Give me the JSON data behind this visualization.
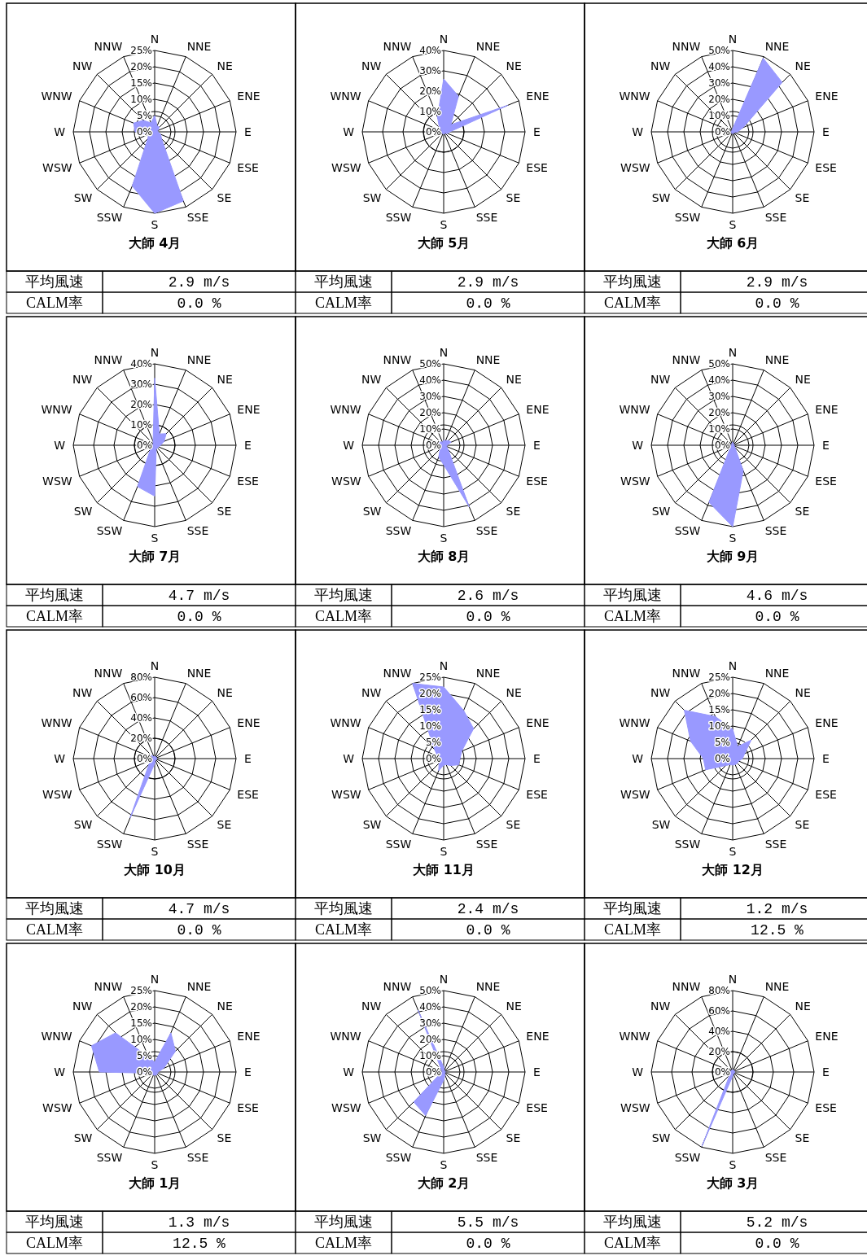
{
  "chart_data": [
    {
      "type": "radar",
      "title": "大師 4月",
      "categories": [
        "N",
        "NNE",
        "NE",
        "ENE",
        "E",
        "ESE",
        "SE",
        "SSE",
        "S",
        "SSW",
        "SW",
        "WSW",
        "W",
        "WNW",
        "NW",
        "NNW"
      ],
      "series": [
        {
          "color": "#9999ff",
          "values": [
            5,
            2,
            2,
            1,
            1,
            2,
            3,
            23,
            25,
            18,
            3,
            2,
            6,
            7,
            5,
            3
          ]
        }
      ],
      "ylim": [
        0,
        25
      ],
      "yticks": [
        {
          "value": 0,
          "label": "0%"
        },
        {
          "value": 5,
          "label": "5%"
        },
        {
          "value": 10,
          "label": "10%"
        },
        {
          "value": 15,
          "label": "15%"
        },
        {
          "value": 20,
          "label": "20%"
        },
        {
          "value": 25,
          "label": "25%"
        }
      ],
      "grid": true,
      "annotations": [
        "平均風速",
        "2.9 m/s",
        "CALM率",
        "0.0 %"
      ]
    },
    {
      "type": "radar",
      "title": "大師 5月",
      "categories": [
        "N",
        "NNE",
        "NE",
        "ENE",
        "E",
        "ESE",
        "SE",
        "SSE",
        "S",
        "SSW",
        "SW",
        "WSW",
        "W",
        "WNW",
        "NW",
        "NNW"
      ],
      "series": [
        {
          "color": "#9999ff",
          "values": [
            26,
            19,
            5,
            34,
            3,
            2,
            1,
            1,
            1,
            1,
            1,
            1,
            1,
            1,
            3,
            8
          ]
        }
      ],
      "ylim": [
        0,
        40
      ],
      "yticks": [
        {
          "value": 0,
          "label": "0%"
        },
        {
          "value": 10,
          "label": "10%"
        },
        {
          "value": 20,
          "label": "20%"
        },
        {
          "value": 30,
          "label": "30%"
        },
        {
          "value": 40,
          "label": "40%"
        }
      ],
      "grid": true,
      "annotations": [
        "平均風速",
        "2.9 m/s",
        "CALM率",
        "0.0 %"
      ]
    },
    {
      "type": "radar",
      "title": "大師 6月",
      "categories": [
        "N",
        "NNE",
        "NE",
        "ENE",
        "E",
        "ESE",
        "SE",
        "SSE",
        "S",
        "SSW",
        "SW",
        "WSW",
        "W",
        "WNW",
        "NW",
        "NNW"
      ],
      "series": [
        {
          "color": "#9999ff",
          "values": [
            2,
            49,
            43,
            7,
            3,
            1,
            1,
            1,
            1,
            1,
            1,
            1,
            1,
            1,
            1,
            1
          ]
        }
      ],
      "ylim": [
        0,
        50
      ],
      "yticks": [
        {
          "value": 0,
          "label": "0%"
        },
        {
          "value": 10,
          "label": "10%"
        },
        {
          "value": 20,
          "label": "20%"
        },
        {
          "value": 30,
          "label": "30%"
        },
        {
          "value": 40,
          "label": "40%"
        },
        {
          "value": 50,
          "label": "50%"
        }
      ],
      "grid": true,
      "annotations": [
        "平均風速",
        "2.9 m/s",
        "CALM率",
        "0.0 %"
      ]
    },
    {
      "type": "radar",
      "title": "大師 7月",
      "categories": [
        "N",
        "NNE",
        "NE",
        "ENE",
        "E",
        "ESE",
        "SE",
        "SSE",
        "S",
        "SSW",
        "SW",
        "WSW",
        "W",
        "WNW",
        "NW",
        "NNW"
      ],
      "series": [
        {
          "color": "#9999ff",
          "values": [
            33,
            6,
            8,
            5,
            3,
            2,
            2,
            2,
            25,
            22,
            3,
            1,
            1,
            1,
            1,
            2
          ]
        }
      ],
      "ylim": [
        0,
        40
      ],
      "yticks": [
        {
          "value": 0,
          "label": "0%"
        },
        {
          "value": 10,
          "label": "10%"
        },
        {
          "value": 20,
          "label": "20%"
        },
        {
          "value": 30,
          "label": "30%"
        },
        {
          "value": 40,
          "label": "40%"
        }
      ],
      "grid": true,
      "annotations": [
        "平均風速",
        "4.7 m/s",
        "CALM率",
        "0.0 %"
      ]
    },
    {
      "type": "radar",
      "title": "大師 8月",
      "categories": [
        "N",
        "NNE",
        "NE",
        "ENE",
        "E",
        "ESE",
        "SE",
        "SSE",
        "S",
        "SSW",
        "SW",
        "WSW",
        "W",
        "WNW",
        "NW",
        "NNW"
      ],
      "series": [
        {
          "color": "#9999ff",
          "values": [
            3,
            3,
            4,
            5,
            2,
            2,
            4,
            41,
            12,
            8,
            3,
            2,
            2,
            4,
            3,
            2
          ]
        }
      ],
      "ylim": [
        0,
        50
      ],
      "yticks": [
        {
          "value": 0,
          "label": "0%"
        },
        {
          "value": 10,
          "label": "10%"
        },
        {
          "value": 20,
          "label": "20%"
        },
        {
          "value": 30,
          "label": "30%"
        },
        {
          "value": 40,
          "label": "40%"
        },
        {
          "value": 50,
          "label": "50%"
        }
      ],
      "grid": true,
      "annotations": [
        "平均風速",
        "2.6 m/s",
        "CALM率",
        "0.0 %"
      ]
    },
    {
      "type": "radar",
      "title": "大師 9月",
      "categories": [
        "N",
        "NNE",
        "NE",
        "ENE",
        "E",
        "ESE",
        "SE",
        "SSE",
        "S",
        "SSW",
        "SW",
        "WSW",
        "W",
        "WNW",
        "NW",
        "NNW"
      ],
      "series": [
        {
          "color": "#9999ff",
          "values": [
            2,
            1,
            1,
            1,
            1,
            1,
            2,
            17,
            50,
            38,
            2,
            1,
            1,
            1,
            1,
            1
          ]
        }
      ],
      "ylim": [
        0,
        50
      ],
      "yticks": [
        {
          "value": 0,
          "label": "0%"
        },
        {
          "value": 10,
          "label": "10%"
        },
        {
          "value": 20,
          "label": "20%"
        },
        {
          "value": 30,
          "label": "30%"
        },
        {
          "value": 40,
          "label": "40%"
        },
        {
          "value": 50,
          "label": "50%"
        }
      ],
      "grid": true,
      "annotations": [
        "平均風速",
        "4.6 m/s",
        "CALM率",
        "0.0 %"
      ]
    },
    {
      "type": "radar",
      "title": "大師 10月",
      "categories": [
        "N",
        "NNE",
        "NE",
        "ENE",
        "E",
        "ESE",
        "SE",
        "SSE",
        "S",
        "SSW",
        "SW",
        "WSW",
        "W",
        "WNW",
        "NW",
        "NNW"
      ],
      "series": [
        {
          "color": "#9999ff",
          "values": [
            2,
            2,
            2,
            2,
            2,
            2,
            2,
            2,
            5,
            63,
            8,
            2,
            2,
            2,
            5,
            2
          ]
        }
      ],
      "ylim": [
        0,
        80
      ],
      "yticks": [
        {
          "value": 0,
          "label": "0%"
        },
        {
          "value": 20,
          "label": "20%"
        },
        {
          "value": 40,
          "label": "40%"
        },
        {
          "value": 60,
          "label": "60%"
        },
        {
          "value": 80,
          "label": "80%"
        }
      ],
      "grid": true,
      "annotations": [
        "平均風速",
        "4.7 m/s",
        "CALM率",
        "0.0 %"
      ]
    },
    {
      "type": "radar",
      "title": "大師 11月",
      "categories": [
        "N",
        "NNE",
        "NE",
        "ENE",
        "E",
        "ESE",
        "SE",
        "SSE",
        "S",
        "SSW",
        "SW",
        "WSW",
        "W",
        "WNW",
        "NW",
        "NNW"
      ],
      "series": [
        {
          "color": "#9999ff",
          "values": [
            22,
            16,
            13,
            6,
            5,
            5,
            3,
            2,
            2,
            4,
            2,
            1,
            1,
            2,
            4,
            25
          ]
        }
      ],
      "ylim": [
        0,
        25
      ],
      "yticks": [
        {
          "value": 0,
          "label": "0%"
        },
        {
          "value": 5,
          "label": "5%"
        },
        {
          "value": 10,
          "label": "10%"
        },
        {
          "value": 15,
          "label": "15%"
        },
        {
          "value": 20,
          "label": "20%"
        },
        {
          "value": 25,
          "label": "25%"
        }
      ],
      "grid": true,
      "annotations": [
        "平均風速",
        "2.4 m/s",
        "CALM率",
        "0.0 %"
      ]
    },
    {
      "type": "radar",
      "title": "大師 12月",
      "categories": [
        "N",
        "NNE",
        "NE",
        "ENE",
        "E",
        "ESE",
        "SE",
        "SSE",
        "S",
        "SSW",
        "SW",
        "WSW",
        "W",
        "WNW",
        "NW",
        "NNW"
      ],
      "series": [
        {
          "color": "#9999ff",
          "values": [
            9,
            4,
            8,
            4,
            3,
            2,
            2,
            2,
            2,
            2,
            3,
            9,
            9,
            14,
            21,
            14
          ]
        }
      ],
      "ylim": [
        0,
        25
      ],
      "yticks": [
        {
          "value": 0,
          "label": "0%"
        },
        {
          "value": 5,
          "label": "5%"
        },
        {
          "value": 10,
          "label": "10%"
        },
        {
          "value": 15,
          "label": "15%"
        },
        {
          "value": 20,
          "label": "20%"
        },
        {
          "value": 25,
          "label": "25%"
        }
      ],
      "grid": true,
      "annotations": [
        "平均風速",
        "1.2 m/s",
        "CALM率",
        "12.5 %"
      ]
    },
    {
      "type": "radar",
      "title": "大師 1月",
      "categories": [
        "N",
        "NNE",
        "NE",
        "ENE",
        "E",
        "ESE",
        "SE",
        "SSE",
        "S",
        "SSW",
        "SW",
        "WSW",
        "W",
        "WNW",
        "NW",
        "NNW"
      ],
      "series": [
        {
          "color": "#9999ff",
          "values": [
            3,
            13,
            9,
            3,
            1,
            1,
            1,
            1,
            1,
            1,
            1,
            1,
            17,
            21,
            17,
            5
          ]
        }
      ],
      "ylim": [
        0,
        25
      ],
      "yticks": [
        {
          "value": 0,
          "label": "0%"
        },
        {
          "value": 5,
          "label": "5%"
        },
        {
          "value": 10,
          "label": "10%"
        },
        {
          "value": 15,
          "label": "15%"
        },
        {
          "value": 20,
          "label": "20%"
        },
        {
          "value": 25,
          "label": "25%"
        }
      ],
      "grid": true,
      "annotations": [
        "平均風速",
        "1.3 m/s",
        "CALM率",
        "12.5 %"
      ]
    },
    {
      "type": "radar",
      "title": "大師 2月",
      "categories": [
        "N",
        "NNE",
        "NE",
        "ENE",
        "E",
        "ESE",
        "SE",
        "SSE",
        "S",
        "SSW",
        "SW",
        "WSW",
        "W",
        "WNW",
        "NW",
        "NNW"
      ],
      "series": [
        {
          "color": "#9999ff",
          "values": [
            3,
            1,
            1,
            1,
            1,
            1,
            1,
            2,
            5,
            29,
            26,
            2,
            1,
            1,
            2,
            41
          ]
        }
      ],
      "ylim": [
        0,
        50
      ],
      "yticks": [
        {
          "value": 0,
          "label": "0%"
        },
        {
          "value": 10,
          "label": "10%"
        },
        {
          "value": 20,
          "label": "20%"
        },
        {
          "value": 30,
          "label": "30%"
        },
        {
          "value": 40,
          "label": "40%"
        },
        {
          "value": 50,
          "label": "50%"
        }
      ],
      "grid": true,
      "annotations": [
        "平均風速",
        "5.5 m/s",
        "CALM率",
        "0.0 %"
      ]
    },
    {
      "type": "radar",
      "title": "大師 3月",
      "categories": [
        "N",
        "NNE",
        "NE",
        "ENE",
        "E",
        "ESE",
        "SE",
        "SSE",
        "S",
        "SSW",
        "SW",
        "WSW",
        "W",
        "WNW",
        "NW",
        "NNW"
      ],
      "series": [
        {
          "color": "#9999ff",
          "values": [
            2,
            2,
            2,
            2,
            2,
            2,
            2,
            2,
            4,
            79,
            4,
            2,
            2,
            2,
            2,
            2
          ]
        }
      ],
      "ylim": [
        0,
        80
      ],
      "yticks": [
        {
          "value": 0,
          "label": "0%"
        },
        {
          "value": 20,
          "label": "20%"
        },
        {
          "value": 40,
          "label": "40%"
        },
        {
          "value": 60,
          "label": "60%"
        },
        {
          "value": 80,
          "label": "80%"
        }
      ],
      "grid": true,
      "annotations": [
        "平均風速",
        "5.2 m/s",
        "CALM率",
        "0.0 %"
      ]
    }
  ]
}
